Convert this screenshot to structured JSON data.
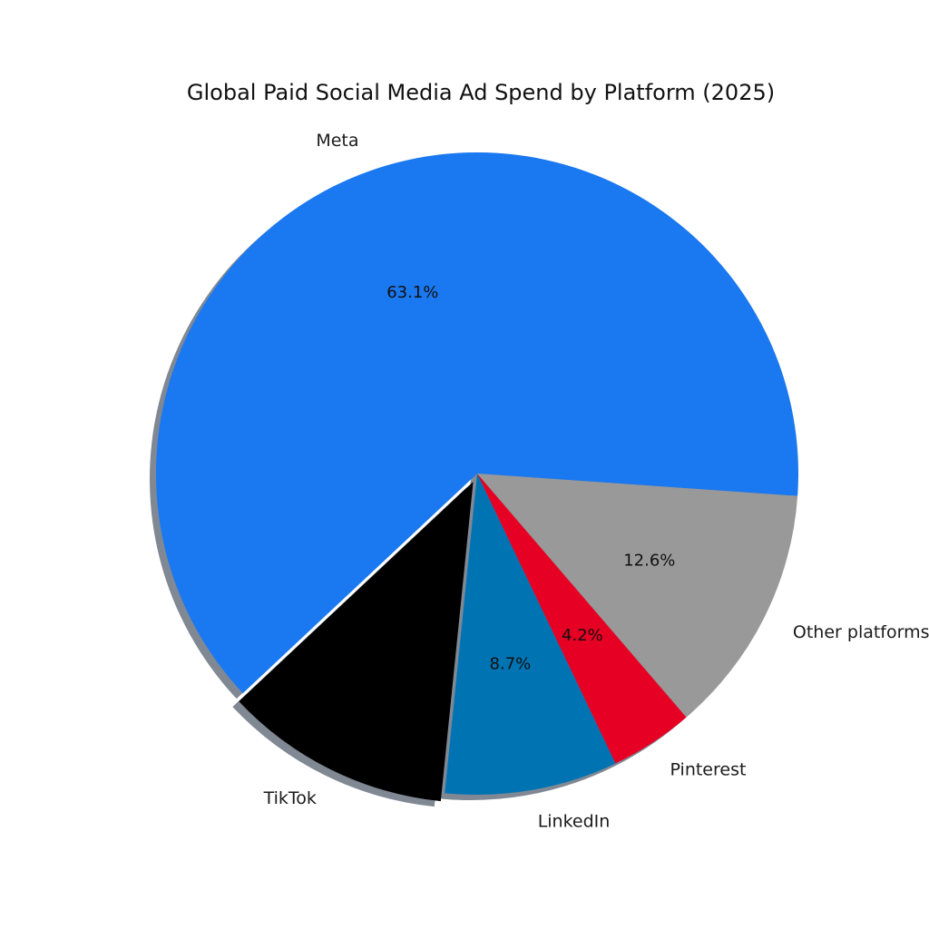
{
  "chart_data": {
    "type": "pie",
    "title": "Global Paid Social Media Ad Spend by Platform (2025)",
    "slices": [
      {
        "label": "Meta",
        "value": 63.1,
        "pct_label": "63.1%",
        "color": "#1a78f0",
        "exploded": false
      },
      {
        "label": "TikTok",
        "value": 11.4,
        "pct_label": "",
        "color": "#000000",
        "exploded": true
      },
      {
        "label": "LinkedIn",
        "value": 8.7,
        "pct_label": "8.7%",
        "color": "#0073b3",
        "exploded": false
      },
      {
        "label": "Pinterest",
        "value": 4.2,
        "pct_label": "4.2%",
        "color": "#e60023",
        "exploded": false
      },
      {
        "label": "Other platforms",
        "value": 12.6,
        "pct_label": "12.6%",
        "color": "#999999",
        "exploded": false
      }
    ],
    "start_angle_deg": 356,
    "direction": "counterclockwise",
    "shadow": true,
    "legend": "none"
  }
}
